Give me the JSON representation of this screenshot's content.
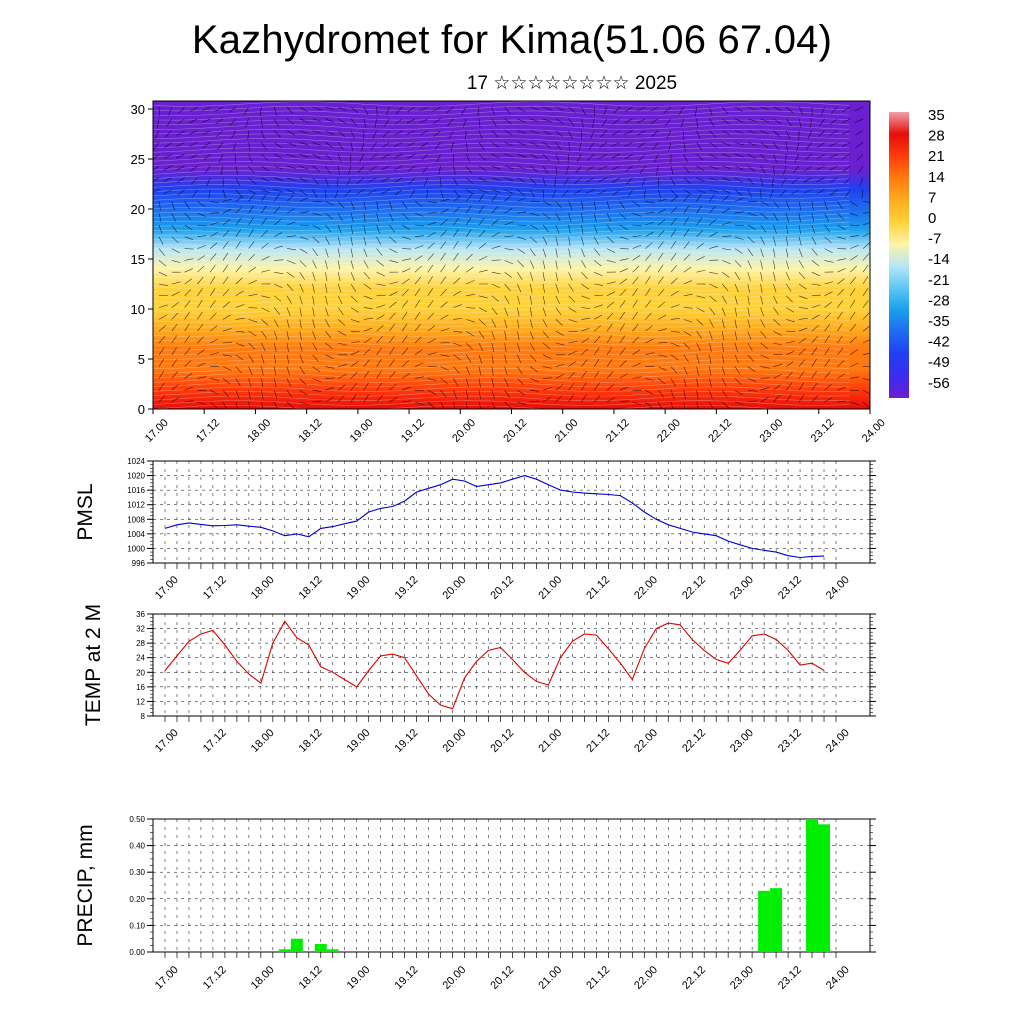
{
  "title": "Kazhydromet for Kima(51.06 67.04)",
  "subtitle": "17 ☆☆☆☆☆☆☆☆ 2025",
  "colors": {
    "pmsl_line": "#0000cc",
    "temp_line": "#dd0000",
    "precip_bar": "#00ee00",
    "grid": "#000000"
  },
  "chart_data": [
    {
      "type": "heatmap",
      "name_hint": "upper-air temperature and wind section",
      "x_ticks": [
        "17.00",
        "17.12",
        "18.00",
        "18.12",
        "19.00",
        "19.12",
        "20.00",
        "20.12",
        "21.00",
        "21.12",
        "22.00",
        "22.12",
        "23.00",
        "23.12",
        "24.00"
      ],
      "y_ticks": [
        "0",
        "5",
        "10",
        "15",
        "20",
        "25",
        "30"
      ],
      "ylim": [
        0,
        30.8
      ],
      "colorbar_labels": [
        "35",
        "28",
        "21",
        "14",
        "7",
        "0",
        "-7",
        "-14",
        "-21",
        "-28",
        "-35",
        "-42",
        "-49",
        "-56"
      ],
      "levels": [
        0,
        2,
        4,
        6,
        8,
        10,
        12,
        14,
        16,
        18,
        20,
        22,
        24,
        26,
        28,
        30
      ],
      "temperature_by_level": [
        28,
        24,
        20,
        16,
        11,
        6,
        2,
        -4,
        -12,
        -22,
        -32,
        -42,
        -50,
        -54,
        -55,
        -56
      ]
    },
    {
      "type": "line",
      "ylabel": "PMSL",
      "ylim": [
        996,
        1024
      ],
      "y_ticks": [
        "1024",
        "1020",
        "1016",
        "1012",
        "1008",
        "1004",
        "1000",
        "996"
      ],
      "x_ticks": [
        "17.00",
        "17.12",
        "18.00",
        "18.12",
        "19.00",
        "19.12",
        "20.00",
        "20.12",
        "21.00",
        "21.12",
        "22.00",
        "22.12",
        "23.00",
        "23.12",
        "24.00"
      ],
      "x_hours": [
        0,
        3,
        6,
        9,
        12,
        15,
        18,
        21,
        24,
        27,
        30,
        33,
        36,
        39,
        42,
        45,
        48,
        51,
        54,
        57,
        60,
        63,
        66,
        69,
        72,
        75,
        78,
        81,
        84,
        87,
        90,
        93,
        96,
        99,
        102,
        105,
        108,
        111,
        114,
        117,
        120,
        123,
        126,
        129,
        132,
        135,
        138,
        141,
        144,
        147,
        150,
        153,
        156,
        159,
        162,
        165
      ],
      "values": [
        1005.5,
        1006.5,
        1007.0,
        1006.6,
        1006.2,
        1006.3,
        1006.5,
        1006.1,
        1005.8,
        1004.8,
        1003.5,
        1004.0,
        1003.2,
        1005.5,
        1006.0,
        1006.8,
        1007.5,
        1010.0,
        1011.0,
        1011.5,
        1013.0,
        1015.5,
        1016.5,
        1017.5,
        1019.0,
        1018.5,
        1017.0,
        1017.5,
        1018.0,
        1019.0,
        1020.0,
        1019.0,
        1017.5,
        1016.0,
        1015.5,
        1015.2,
        1015.0,
        1014.8,
        1014.5,
        1012.5,
        1010.0,
        1008.0,
        1006.5,
        1005.5,
        1004.5,
        1004.0,
        1003.5,
        1002.0,
        1001.0,
        1000.0,
        999.5,
        999.0,
        998.0,
        997.5,
        997.8,
        997.9
      ]
    },
    {
      "type": "line",
      "ylabel": "TEMP at 2 M",
      "ylim": [
        8,
        36
      ],
      "y_ticks": [
        "36",
        "32",
        "28",
        "24",
        "20",
        "16",
        "12",
        "8"
      ],
      "x_ticks": [
        "17.00",
        "17.12",
        "18.00",
        "18.12",
        "19.00",
        "19.12",
        "20.00",
        "20.12",
        "21.00",
        "21.12",
        "22.00",
        "22.12",
        "23.00",
        "23.12",
        "24.00"
      ],
      "x_hours": [
        0,
        3,
        6,
        9,
        12,
        15,
        18,
        21,
        24,
        27,
        30,
        33,
        36,
        39,
        42,
        45,
        48,
        51,
        54,
        57,
        60,
        63,
        66,
        69,
        72,
        75,
        78,
        81,
        84,
        87,
        90,
        93,
        96,
        99,
        102,
        105,
        108,
        111,
        114,
        117,
        120,
        123,
        126,
        129,
        132,
        135,
        138,
        141,
        144,
        147,
        150,
        153,
        156,
        159,
        162,
        165
      ],
      "values": [
        20.5,
        24.5,
        28.5,
        30.5,
        31.5,
        27.5,
        23.0,
        19.5,
        17.0,
        28.0,
        34.0,
        29.5,
        27.5,
        21.5,
        20.0,
        18.0,
        16.0,
        20.5,
        24.5,
        25.0,
        24.0,
        19.0,
        14.0,
        11.0,
        10.0,
        18.5,
        23.0,
        26.0,
        26.8,
        23.5,
        20.0,
        17.5,
        16.5,
        24.0,
        28.5,
        30.5,
        30.2,
        26.5,
        22.5,
        18.0,
        26.5,
        32.0,
        33.5,
        33.0,
        29.0,
        26.0,
        23.5,
        22.5,
        26.0,
        30.0,
        30.5,
        29.0,
        26.0,
        22.0,
        22.5,
        20.5
      ]
    },
    {
      "type": "bar",
      "ylabel": "PRECIP, mm",
      "ylim": [
        0,
        0.5
      ],
      "y_ticks": [
        "0.50",
        "0.40",
        "0.30",
        "0.20",
        "0.10",
        "0.00"
      ],
      "x_ticks": [
        "17.00",
        "17.12",
        "18.00",
        "18.12",
        "19.00",
        "19.12",
        "20.00",
        "20.12",
        "21.00",
        "21.12",
        "22.00",
        "22.12",
        "23.00",
        "23.12",
        "24.00"
      ],
      "x_hours": [
        30,
        33,
        39,
        42,
        150,
        153,
        162,
        165
      ],
      "values": [
        0.01,
        0.05,
        0.03,
        0.01,
        0.23,
        0.24,
        0.5,
        0.48
      ]
    }
  ]
}
